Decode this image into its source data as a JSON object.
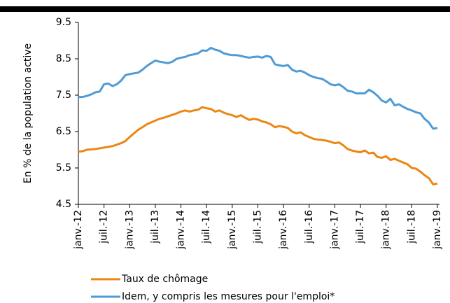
{
  "chart_data": {
    "type": "line",
    "y_label": "En % de la population active",
    "categories": [
      "janv.-12",
      null,
      null,
      null,
      null,
      null,
      "juil.-12",
      null,
      null,
      null,
      null,
      null,
      "janv.-13",
      null,
      null,
      null,
      null,
      null,
      "juil.-13",
      null,
      null,
      null,
      null,
      null,
      "janv.-14",
      null,
      null,
      null,
      null,
      null,
      "juil.-14",
      null,
      null,
      null,
      null,
      null,
      "janv.-15",
      null,
      null,
      null,
      null,
      null,
      "juil.-15",
      null,
      null,
      null,
      null,
      null,
      "janv.-16",
      null,
      null,
      null,
      null,
      null,
      "juil.-16",
      null,
      null,
      null,
      null,
      null,
      "janv.-17",
      null,
      null,
      null,
      null,
      null,
      "juil.-17",
      null,
      null,
      null,
      null,
      null,
      "janv.-18",
      null,
      null,
      null,
      null,
      null,
      "juil.-18",
      null,
      null,
      null,
      null,
      null,
      "janv.-19"
    ],
    "series": [
      {
        "name": "Taux de chômage",
        "color": "#eb8714",
        "values": [
          5.95,
          5.96,
          6.0,
          6.01,
          6.02,
          6.04,
          6.06,
          6.08,
          6.1,
          6.14,
          6.18,
          6.24,
          6.35,
          6.45,
          6.55,
          6.62,
          6.7,
          6.75,
          6.8,
          6.85,
          6.88,
          6.92,
          6.96,
          7.0,
          7.05,
          7.08,
          7.05,
          7.08,
          7.1,
          7.17,
          7.14,
          7.12,
          7.05,
          7.08,
          7.02,
          6.98,
          6.95,
          6.9,
          6.95,
          6.88,
          6.82,
          6.85,
          6.83,
          6.78,
          6.75,
          6.7,
          6.62,
          6.65,
          6.63,
          6.6,
          6.5,
          6.45,
          6.48,
          6.4,
          6.35,
          6.3,
          6.28,
          6.27,
          6.25,
          6.22,
          6.18,
          6.2,
          6.12,
          6.02,
          5.98,
          5.95,
          5.93,
          5.98,
          5.9,
          5.92,
          5.8,
          5.78,
          5.82,
          5.72,
          5.75,
          5.7,
          5.65,
          5.6,
          5.5,
          5.48,
          5.4,
          5.3,
          5.22,
          5.05,
          5.07
        ]
      },
      {
        "name": "Idem, y compris les mesures pour l'emploi*",
        "color": "#4f9bd5",
        "values": [
          7.45,
          7.45,
          7.48,
          7.52,
          7.58,
          7.6,
          7.8,
          7.82,
          7.75,
          7.8,
          7.9,
          8.05,
          8.08,
          8.1,
          8.12,
          8.2,
          8.3,
          8.38,
          8.45,
          8.42,
          8.4,
          8.38,
          8.42,
          8.5,
          8.53,
          8.55,
          8.6,
          8.62,
          8.65,
          8.73,
          8.72,
          8.8,
          8.75,
          8.72,
          8.65,
          8.62,
          8.6,
          8.6,
          8.58,
          8.55,
          8.53,
          8.55,
          8.56,
          8.53,
          8.58,
          8.55,
          8.35,
          8.32,
          8.3,
          8.33,
          8.2,
          8.15,
          8.17,
          8.12,
          8.05,
          8.0,
          7.97,
          7.95,
          7.88,
          7.8,
          7.77,
          7.8,
          7.72,
          7.62,
          7.6,
          7.55,
          7.55,
          7.55,
          7.65,
          7.58,
          7.48,
          7.35,
          7.3,
          7.4,
          7.22,
          7.25,
          7.18,
          7.12,
          7.08,
          7.03,
          7.0,
          6.85,
          6.75,
          6.58,
          6.6
        ]
      }
    ],
    "ylim": [
      4.5,
      9.5
    ],
    "yticks": [
      4.5,
      5.5,
      6.5,
      7.5,
      8.5,
      9.5
    ],
    "grid": false
  }
}
